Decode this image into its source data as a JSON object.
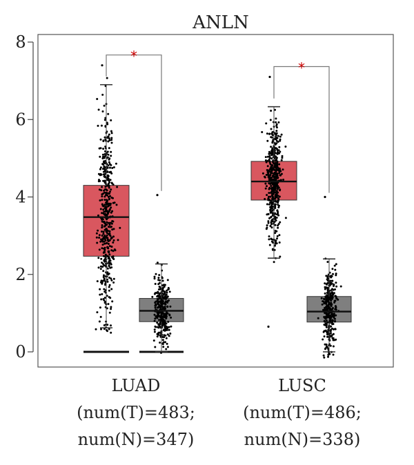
{
  "chart_data": {
    "type": "box",
    "title": "ANLN",
    "ylim": [
      0,
      8
    ],
    "yticks": [
      0,
      2,
      4,
      6,
      8
    ],
    "grid": false,
    "categories": [
      {
        "name": "LUAD",
        "label_lines": [
          "LUAD",
          "(num(T)=483;",
          "num(N)=347)"
        ],
        "significance": "*",
        "groups": [
          {
            "group": "T",
            "n": 483,
            "color": "#d9575f",
            "whisker_low": 0.62,
            "q1": 2.47,
            "median": 3.48,
            "q3": 4.3,
            "whisker_high": 6.9,
            "outlier_max": 7.4,
            "has_zero_cluster": true
          },
          {
            "group": "N",
            "n": 347,
            "color": "#7f7f7f",
            "whisker_low": 0.0,
            "q1": 0.78,
            "median": 1.06,
            "q3": 1.38,
            "whisker_high": 2.27,
            "outlier_max": 4.05,
            "has_zero_cluster": true
          }
        ]
      },
      {
        "name": "LUSC",
        "label_lines": [
          "LUSC",
          "(num(T)=486;",
          "num(N)=338)"
        ],
        "significance": "*",
        "groups": [
          {
            "group": "T",
            "n": 486,
            "color": "#d9575f",
            "whisker_low": 2.42,
            "q1": 3.92,
            "median": 4.4,
            "q3": 4.92,
            "whisker_high": 6.33,
            "outlier_max": 7.1,
            "outlier_min": 0.65,
            "has_zero_cluster": false
          },
          {
            "group": "N",
            "n": 338,
            "color": "#7f7f7f",
            "whisker_low": 0.0,
            "q1": 0.77,
            "median": 1.04,
            "q3": 1.43,
            "whisker_high": 2.4,
            "outlier_max": 4.0,
            "has_zero_cluster": false
          }
        ]
      }
    ],
    "colors": {
      "tumor": "#d9575f",
      "normal": "#7f7f7f",
      "star": "#cc0000",
      "points": "#000000"
    }
  }
}
